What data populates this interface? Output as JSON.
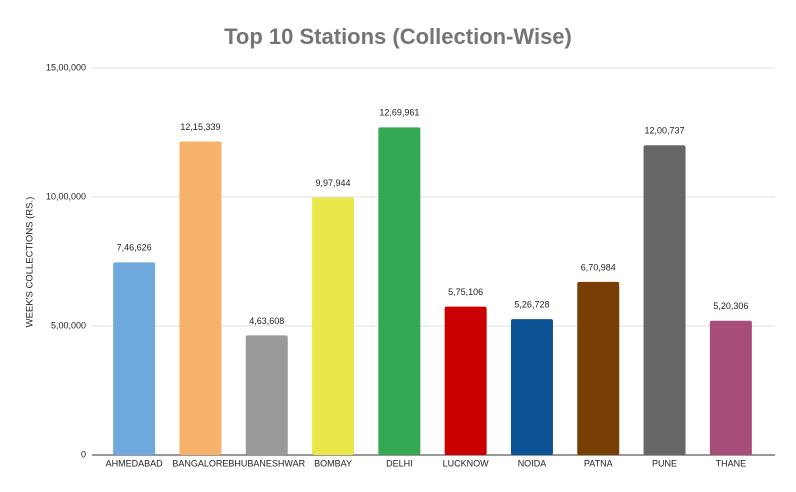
{
  "chart_data": {
    "type": "bar",
    "title": "Top 10 Stations (Collection-Wise)",
    "y_axis_label": "WEEK'S COLLECTIONS (RS.)",
    "categories": [
      "AHMEDABAD",
      "BANGALORE",
      "BHUBANESHWAR",
      "BOMBAY",
      "DELHI",
      "LUCKNOW",
      "NOIDA",
      "PATNA",
      "PUNE",
      "THANE"
    ],
    "values": [
      746626,
      1215339,
      463608,
      997944,
      1269961,
      575106,
      526728,
      670984,
      1200737,
      520306
    ],
    "value_labels": [
      "7,46,626",
      "12,15,339",
      "4,63,608",
      "9,97,944",
      "12,69,961",
      "5,75,106",
      "5,26,728",
      "6,70,984",
      "12,00,737",
      "5,20,306"
    ],
    "colors": [
      "#6fa8dc",
      "#f6b26b",
      "#999999",
      "#e9e84b",
      "#34a853",
      "#cc0000",
      "#0b5394",
      "#783f04",
      "#666666",
      "#a64d79"
    ],
    "ylim": [
      0,
      1500000
    ],
    "yticks": [
      {
        "value": 0,
        "label": "0"
      },
      {
        "value": 500000,
        "label": "5,00,000"
      },
      {
        "value": 1000000,
        "label": "10,00,000"
      },
      {
        "value": 1500000,
        "label": "15,00,000"
      }
    ],
    "grid": true
  }
}
